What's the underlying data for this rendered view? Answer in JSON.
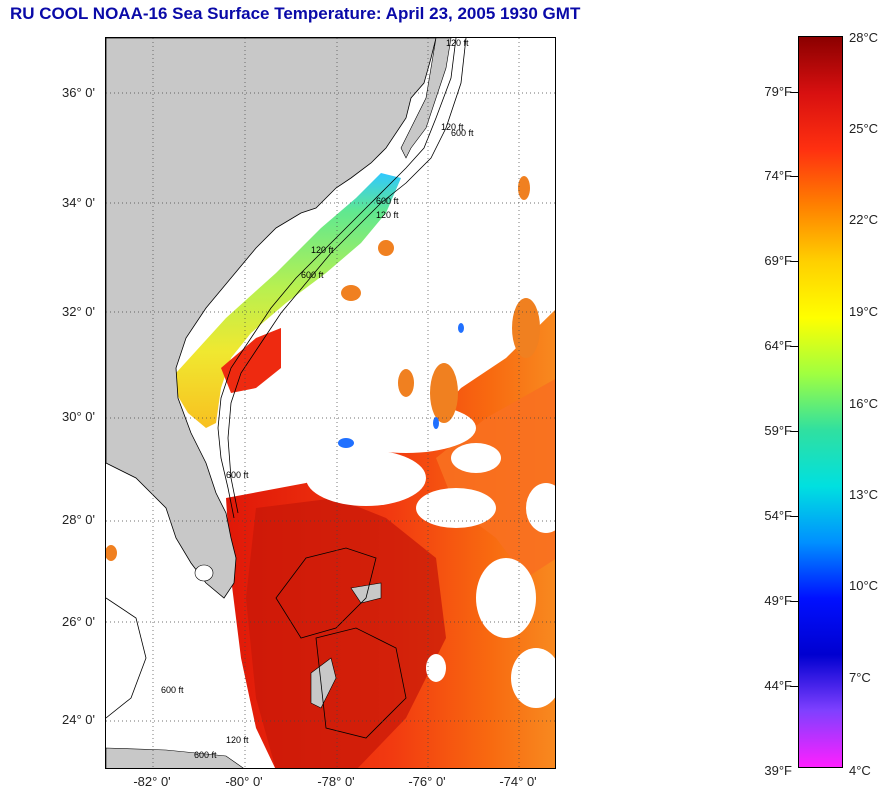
{
  "title": "RU COOL  NOAA-16  Sea Surface Temperature:  April 23, 2005 1930 GMT",
  "map": {
    "latitude_labels": [
      {
        "text": "36° 0'",
        "lat": 36
      },
      {
        "text": "34° 0'",
        "lat": 34
      },
      {
        "text": "32° 0'",
        "lat": 32
      },
      {
        "text": "30° 0'",
        "lat": 30
      },
      {
        "text": "28° 0'",
        "lat": 28
      },
      {
        "text": "26° 0'",
        "lat": 26
      },
      {
        "text": "24° 0'",
        "lat": 24
      }
    ],
    "longitude_labels": [
      {
        "text": "-82° 0'",
        "lon": -82
      },
      {
        "text": "-80° 0'",
        "lon": -80
      },
      {
        "text": "-78° 0'",
        "lon": -78
      },
      {
        "text": "-76° 0'",
        "lon": -76
      },
      {
        "text": "-74° 0'",
        "lon": -74
      }
    ],
    "contour_labels": [
      "120 ft",
      "600 ft",
      "120 ft",
      "600 ft",
      "120 ft",
      "600 ft",
      "120 ft",
      "600 ft",
      "600 ft",
      "120 ft",
      "600 ft"
    ],
    "colors": {
      "land": "#c8c8c8",
      "cloud_no_data": "#ffffff",
      "gulf_stream_warm": "#e8200c",
      "shelf_cool": "#7fe07a"
    }
  },
  "colorbar": {
    "fahrenheit": [
      "79°F",
      "74°F",
      "69°F",
      "64°F",
      "59°F",
      "54°F",
      "49°F",
      "44°F",
      "39°F"
    ],
    "celsius": [
      "28°C",
      "25°C",
      "22°C",
      "19°C",
      "16°C",
      "13°C",
      "10°C",
      "7°C",
      "4°C"
    ],
    "colors": [
      "#8b0000",
      "#d81010",
      "#ff3010",
      "#ff8000",
      "#ffd000",
      "#ffff00",
      "#a0ff40",
      "#30e0a0",
      "#00e0e0",
      "#0090ff",
      "#0010ff",
      "#0000d0",
      "#8040ff",
      "#ff20ff"
    ]
  }
}
